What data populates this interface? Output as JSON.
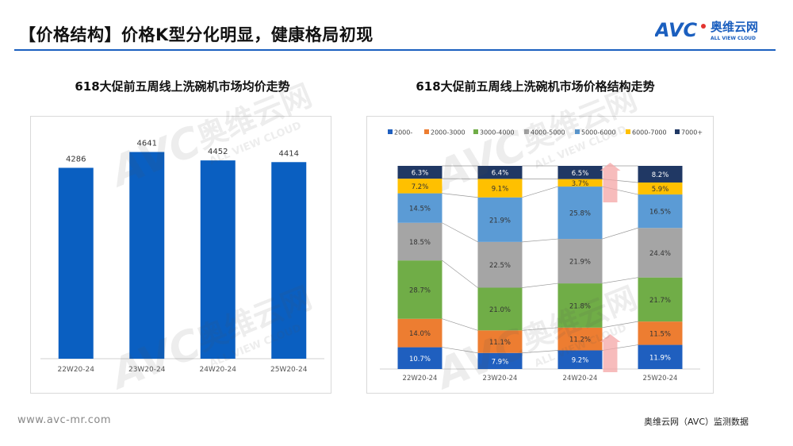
{
  "page": {
    "title": "【价格结构】价格K型分化明显，健康格局初现",
    "brand_text": "奥维云网",
    "brand_sub": "ALL VIEW CLOUD",
    "watermark_text": "奥维云网",
    "watermark_sub": "ALL VIEW CLOUD",
    "footer_url": "www.avc-mr.com",
    "footer_source": "奥维云网（AVC）监测数据",
    "accent_color": "#1b5fbf"
  },
  "chart_data": [
    {
      "type": "bar",
      "title": "618大促前五周线上洗碗机市场均价走势",
      "categories": [
        "22W20-24",
        "23W20-24",
        "24W20-24",
        "25W20-24"
      ],
      "values": [
        4286,
        4641,
        4452,
        4414
      ],
      "ylim": [
        0,
        4900
      ],
      "bar_color": "#0a5fc1",
      "grid": false
    },
    {
      "type": "bar",
      "stacked": "percent",
      "title": "618大促前五周线上洗碗机市场价格结构走势",
      "categories": [
        "22W20-24",
        "23W20-24",
        "24W20-24",
        "25W20-24"
      ],
      "legend_position": "top",
      "series": [
        {
          "name": "2000-",
          "color": "#1f5fbf",
          "values": [
            10.7,
            7.9,
            9.2,
            11.9
          ]
        },
        {
          "name": "2000-3000",
          "color": "#ed7d31",
          "values": [
            14.0,
            11.1,
            11.2,
            11.5
          ]
        },
        {
          "name": "3000-4000",
          "color": "#70ad47",
          "values": [
            28.7,
            21.0,
            21.8,
            21.7
          ]
        },
        {
          "name": "4000-5000",
          "color": "#a5a5a5",
          "values": [
            18.5,
            22.5,
            21.9,
            24.4
          ]
        },
        {
          "name": "5000-6000",
          "color": "#5b9bd5",
          "values": [
            14.5,
            21.9,
            25.8,
            16.5
          ]
        },
        {
          "name": "6000-7000",
          "color": "#ffc000",
          "values": [
            7.2,
            9.1,
            3.7,
            5.9
          ]
        },
        {
          "name": "7000+",
          "color": "#203864",
          "values": [
            6.3,
            6.4,
            6.5,
            8.2
          ]
        }
      ],
      "data_labels": [
        [
          "10.7%",
          "14.0%",
          "28.7%",
          "18.5%",
          "14.5%",
          "7.2%",
          "6.3%"
        ],
        [
          "7.9%",
          "11.1%",
          "21.0%",
          "22.5%",
          "21.9%",
          "9.1%",
          "6.4%"
        ],
        [
          "9.2%",
          "11.2%",
          "21.8%",
          "21.9%",
          "25.8%",
          "3.7%",
          "6.5%"
        ],
        [
          "11.9%",
          "11.5%",
          "21.7%",
          "24.4%",
          "16.5%",
          "5.9%",
          "8.2%"
        ]
      ],
      "annotations": [
        {
          "type": "arrow-up",
          "category": "25W20-24",
          "near_series": "7000+"
        },
        {
          "type": "arrow-up",
          "category": "25W20-24",
          "near_series": "2000-"
        }
      ]
    }
  ]
}
